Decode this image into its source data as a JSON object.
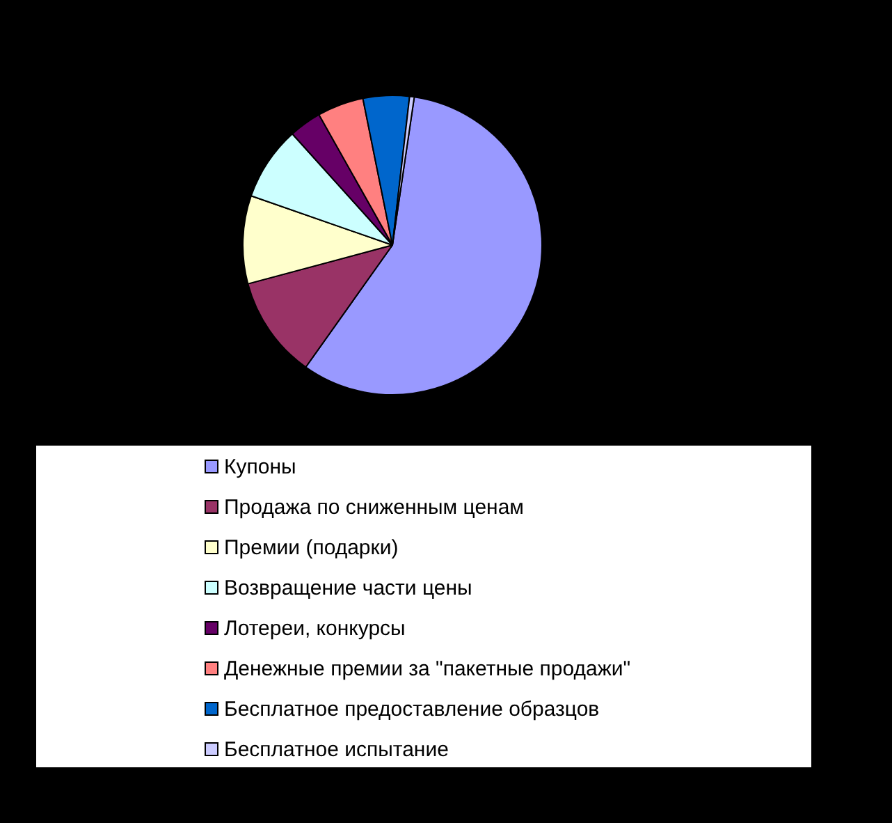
{
  "chart_data": {
    "type": "pie",
    "legend": "bottom",
    "categories": [
      "Купоны",
      "Продажа по сниженным ценам",
      "Премии (подарки)",
      "Возвращение части цены",
      "Лотереи, конкурсы",
      "Денежные премии за \"пакетные продажи\"",
      "Бесплатное предоставление образцов",
      "Бесплатное испытание"
    ],
    "values": [
      57.5,
      11,
      9.5,
      8,
      3.5,
      5,
      5,
      0.5
    ],
    "colors": [
      "#9999ff",
      "#993366",
      "#ffffcc",
      "#ccffff",
      "#660066",
      "#ff8080",
      "#0066cc",
      "#ccccff"
    ]
  }
}
